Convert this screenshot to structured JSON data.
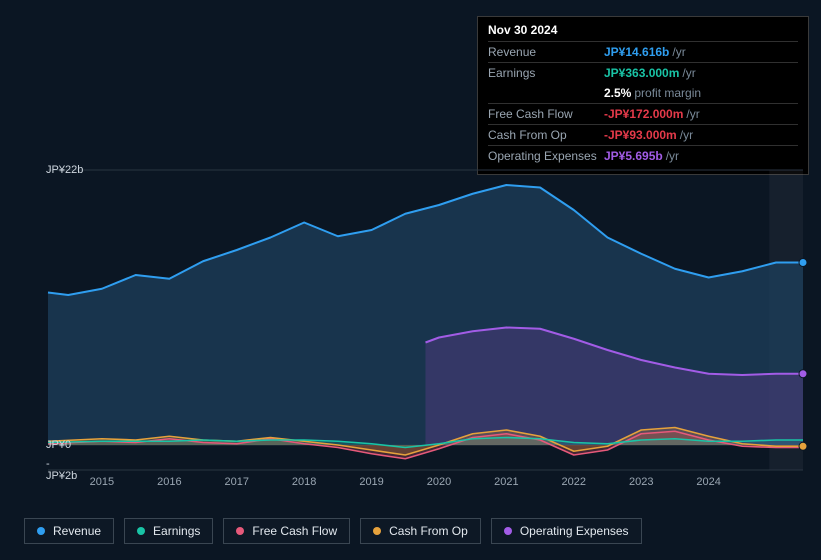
{
  "tooltip": {
    "date": "Nov 30 2024",
    "rows": [
      {
        "label": "Revenue",
        "value": "JP¥14.616b",
        "suffix": "/yr",
        "color": "#2f9ef0"
      },
      {
        "label": "Earnings",
        "value": "JP¥363.000m",
        "suffix": "/yr",
        "color": "#19c4a6"
      },
      {
        "label": "",
        "value": "2.5%",
        "suffix": "profit margin",
        "color": "#ffffff"
      },
      {
        "label": "Free Cash Flow",
        "value": "-JP¥172.000m",
        "suffix": "/yr",
        "color": "#e53a4a"
      },
      {
        "label": "Cash From Op",
        "value": "-JP¥93.000m",
        "suffix": "/yr",
        "color": "#e53a4a"
      },
      {
        "label": "Operating Expenses",
        "value": "JP¥5.695b",
        "suffix": "/yr",
        "color": "#a25ce6"
      }
    ]
  },
  "chart": {
    "type": "area",
    "background_color": "#0b1623",
    "grid_color": "#2a3542",
    "xlim": [
      2014.2,
      2025.4
    ],
    "ylim": [
      -2,
      22
    ],
    "y_ticks": [
      {
        "v": 22,
        "label": "JP¥22b"
      },
      {
        "v": 0,
        "label": "JP¥0"
      },
      {
        "v": -2,
        "label": "-JP¥2b"
      }
    ],
    "x_ticks": [
      2015,
      2016,
      2017,
      2018,
      2019,
      2020,
      2021,
      2022,
      2023,
      2024
    ],
    "series": [
      {
        "name": "Revenue",
        "color": "#2f9ef0",
        "fill": "rgba(30,65,95,0.70)",
        "width": 2,
        "points": [
          [
            2014.2,
            12.2
          ],
          [
            2014.5,
            12.0
          ],
          [
            2015.0,
            12.5
          ],
          [
            2015.5,
            13.6
          ],
          [
            2016.0,
            13.3
          ],
          [
            2016.5,
            14.7
          ],
          [
            2017.0,
            15.6
          ],
          [
            2017.5,
            16.6
          ],
          [
            2018.0,
            17.8
          ],
          [
            2018.5,
            16.7
          ],
          [
            2019.0,
            17.2
          ],
          [
            2019.5,
            18.5
          ],
          [
            2020.0,
            19.2
          ],
          [
            2020.5,
            20.1
          ],
          [
            2021.0,
            20.8
          ],
          [
            2021.5,
            20.6
          ],
          [
            2022.0,
            18.8
          ],
          [
            2022.5,
            16.6
          ],
          [
            2023.0,
            15.3
          ],
          [
            2023.5,
            14.1
          ],
          [
            2024.0,
            13.4
          ],
          [
            2024.5,
            13.9
          ],
          [
            2025.0,
            14.6
          ],
          [
            2025.4,
            14.6
          ]
        ]
      },
      {
        "name": "Operating Expenses",
        "color": "#a25ce6",
        "fill": "rgba(95,60,140,0.40)",
        "width": 2,
        "points": [
          [
            2019.8,
            8.2
          ],
          [
            2020.0,
            8.6
          ],
          [
            2020.5,
            9.1
          ],
          [
            2021.0,
            9.4
          ],
          [
            2021.5,
            9.3
          ],
          [
            2022.0,
            8.5
          ],
          [
            2022.5,
            7.6
          ],
          [
            2023.0,
            6.8
          ],
          [
            2023.5,
            6.2
          ],
          [
            2024.0,
            5.7
          ],
          [
            2024.5,
            5.6
          ],
          [
            2025.0,
            5.7
          ],
          [
            2025.4,
            5.7
          ]
        ]
      },
      {
        "name": "Free Cash Flow",
        "color": "#e6597a",
        "fill": "rgba(170,70,90,0.35)",
        "width": 1.6,
        "points": [
          [
            2014.2,
            0.1
          ],
          [
            2015.0,
            0.3
          ],
          [
            2015.5,
            0.2
          ],
          [
            2016.0,
            0.5
          ],
          [
            2016.5,
            0.2
          ],
          [
            2017.0,
            0.1
          ],
          [
            2017.5,
            0.5
          ],
          [
            2018.0,
            0.1
          ],
          [
            2018.5,
            -0.2
          ],
          [
            2019.0,
            -0.7
          ],
          [
            2019.5,
            -1.1
          ],
          [
            2020.0,
            -0.3
          ],
          [
            2020.5,
            0.6
          ],
          [
            2021.0,
            0.9
          ],
          [
            2021.5,
            0.4
          ],
          [
            2022.0,
            -0.8
          ],
          [
            2022.5,
            -0.4
          ],
          [
            2023.0,
            0.9
          ],
          [
            2023.5,
            1.1
          ],
          [
            2024.0,
            0.4
          ],
          [
            2024.5,
            -0.1
          ],
          [
            2025.0,
            -0.2
          ],
          [
            2025.4,
            -0.2
          ]
        ]
      },
      {
        "name": "Cash From Op",
        "color": "#e6a23c",
        "fill": "rgba(180,130,50,0.30)",
        "width": 1.6,
        "points": [
          [
            2014.2,
            0.3
          ],
          [
            2015.0,
            0.5
          ],
          [
            2015.5,
            0.4
          ],
          [
            2016.0,
            0.7
          ],
          [
            2016.5,
            0.4
          ],
          [
            2017.0,
            0.3
          ],
          [
            2017.5,
            0.6
          ],
          [
            2018.0,
            0.3
          ],
          [
            2018.5,
            0.0
          ],
          [
            2019.0,
            -0.4
          ],
          [
            2019.5,
            -0.8
          ],
          [
            2020.0,
            0.0
          ],
          [
            2020.5,
            0.9
          ],
          [
            2021.0,
            1.2
          ],
          [
            2021.5,
            0.7
          ],
          [
            2022.0,
            -0.5
          ],
          [
            2022.5,
            -0.1
          ],
          [
            2023.0,
            1.2
          ],
          [
            2023.5,
            1.4
          ],
          [
            2024.0,
            0.7
          ],
          [
            2024.5,
            0.1
          ],
          [
            2025.0,
            -0.1
          ],
          [
            2025.4,
            -0.1
          ]
        ]
      },
      {
        "name": "Earnings",
        "color": "#19c4a6",
        "fill": "rgba(25,196,166,0.20)",
        "width": 1.6,
        "points": [
          [
            2014.2,
            0.2
          ],
          [
            2015.0,
            0.3
          ],
          [
            2015.5,
            0.3
          ],
          [
            2016.0,
            0.3
          ],
          [
            2016.5,
            0.4
          ],
          [
            2017.0,
            0.3
          ],
          [
            2017.5,
            0.4
          ],
          [
            2018.0,
            0.4
          ],
          [
            2018.5,
            0.3
          ],
          [
            2019.0,
            0.1
          ],
          [
            2019.5,
            -0.2
          ],
          [
            2020.0,
            0.1
          ],
          [
            2020.5,
            0.5
          ],
          [
            2021.0,
            0.6
          ],
          [
            2021.5,
            0.5
          ],
          [
            2022.0,
            0.2
          ],
          [
            2022.5,
            0.1
          ],
          [
            2023.0,
            0.4
          ],
          [
            2023.5,
            0.5
          ],
          [
            2024.0,
            0.3
          ],
          [
            2024.5,
            0.3
          ],
          [
            2025.0,
            0.4
          ],
          [
            2025.4,
            0.4
          ]
        ]
      }
    ],
    "legend": [
      {
        "label": "Revenue",
        "color": "#2f9ef0"
      },
      {
        "label": "Earnings",
        "color": "#19c4a6"
      },
      {
        "label": "Free Cash Flow",
        "color": "#e6597a"
      },
      {
        "label": "Cash From Op",
        "color": "#e6a23c"
      },
      {
        "label": "Operating Expenses",
        "color": "#a25ce6"
      }
    ],
    "end_markers": [
      {
        "series": "Revenue",
        "color": "#2f9ef0"
      },
      {
        "series": "Operating Expenses",
        "color": "#a25ce6"
      },
      {
        "series": "Cash From Op",
        "color": "#e6a23c"
      }
    ],
    "highlight_band": {
      "from": 2024.9,
      "to": 2025.4,
      "color": "rgba(200,210,225,0.06)"
    }
  }
}
